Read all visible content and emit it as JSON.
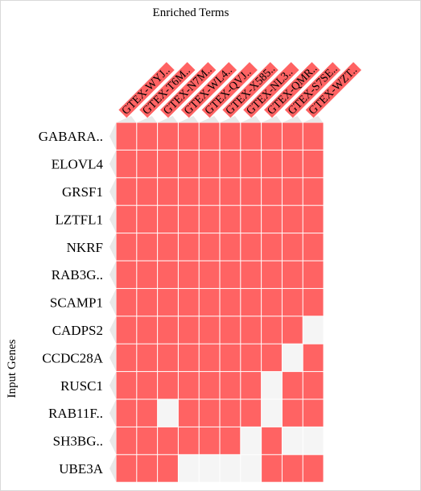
{
  "chart_data": {
    "type": "heatmap",
    "title": "Enriched Terms",
    "ylabel": "Input Genes",
    "columns": [
      "GTEX-WYJ..",
      "GTEX-T6M..",
      "GTEX-N7M..",
      "GTEX-WL4..",
      "GTEX-QVJ..",
      "GTEX-X585..",
      "GTEX-NL3..",
      "GTEX-QMR..",
      "GTEX-S7SE..",
      "GTEX-WZT.."
    ],
    "rows": [
      "GABARA..",
      "ELOVL4",
      "GRSF1",
      "LZTFL1",
      "NKRF",
      "RAB3G..",
      "SCAMP1",
      "CADPS2",
      "CCDC28A",
      "RUSC1",
      "RAB11F..",
      "SH3BG..",
      "UBE3A"
    ],
    "matrix": [
      [
        1,
        1,
        1,
        1,
        1,
        1,
        1,
        1,
        1,
        1
      ],
      [
        1,
        1,
        1,
        1,
        1,
        1,
        1,
        1,
        1,
        1
      ],
      [
        1,
        1,
        1,
        1,
        1,
        1,
        1,
        1,
        1,
        1
      ],
      [
        1,
        1,
        1,
        1,
        1,
        1,
        1,
        1,
        1,
        1
      ],
      [
        1,
        1,
        1,
        1,
        1,
        1,
        1,
        1,
        1,
        1
      ],
      [
        1,
        1,
        1,
        1,
        1,
        1,
        1,
        1,
        1,
        1
      ],
      [
        1,
        1,
        1,
        1,
        1,
        1,
        1,
        1,
        1,
        1
      ],
      [
        1,
        1,
        1,
        1,
        1,
        1,
        1,
        1,
        1,
        0
      ],
      [
        1,
        1,
        1,
        1,
        1,
        1,
        1,
        1,
        0,
        1
      ],
      [
        1,
        1,
        1,
        1,
        1,
        1,
        1,
        0,
        1,
        1
      ],
      [
        1,
        1,
        0,
        1,
        1,
        1,
        1,
        0,
        1,
        1
      ],
      [
        1,
        1,
        1,
        1,
        1,
        1,
        0,
        1,
        0,
        0
      ],
      [
        1,
        1,
        1,
        0,
        0,
        0,
        0,
        1,
        1,
        1
      ]
    ],
    "colors": {
      "present": "#ff6363",
      "absent": "#f5f5f5",
      "grid": "#ffffff",
      "shadow": "#e8e8e8"
    }
  }
}
